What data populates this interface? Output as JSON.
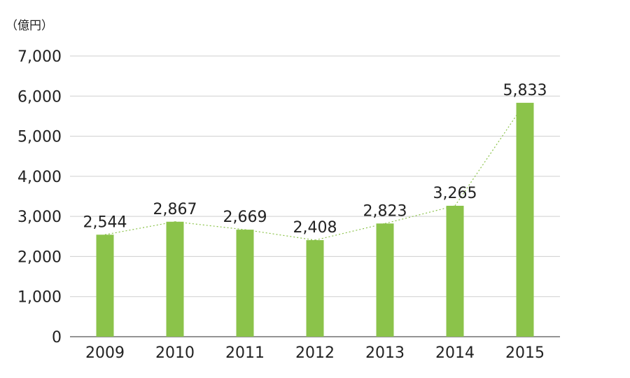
{
  "chart_data": {
    "type": "bar",
    "unit_label": "（億円）",
    "categories": [
      "2009",
      "2010",
      "2011",
      "2012",
      "2013",
      "2014",
      "2015"
    ],
    "values": [
      2544,
      2867,
      2669,
      2408,
      2823,
      3265,
      5833
    ],
    "data_labels": [
      "2,544",
      "2,867",
      "2,669",
      "2,408",
      "2,823",
      "3,265",
      "5,833"
    ],
    "ylim": [
      0,
      7000
    ],
    "yticks": [
      0,
      1000,
      2000,
      3000,
      4000,
      5000,
      6000,
      7000
    ],
    "ytick_labels": [
      "0",
      "1,000",
      "2,000",
      "3,000",
      "4,000",
      "5,000",
      "6,000",
      "7,000"
    ],
    "grid": true,
    "trend_line": true,
    "colors": {
      "bar": "#8bc34a",
      "grid": "#cfcfcf",
      "trend": "#8bc34a",
      "axis": "#555555"
    }
  }
}
